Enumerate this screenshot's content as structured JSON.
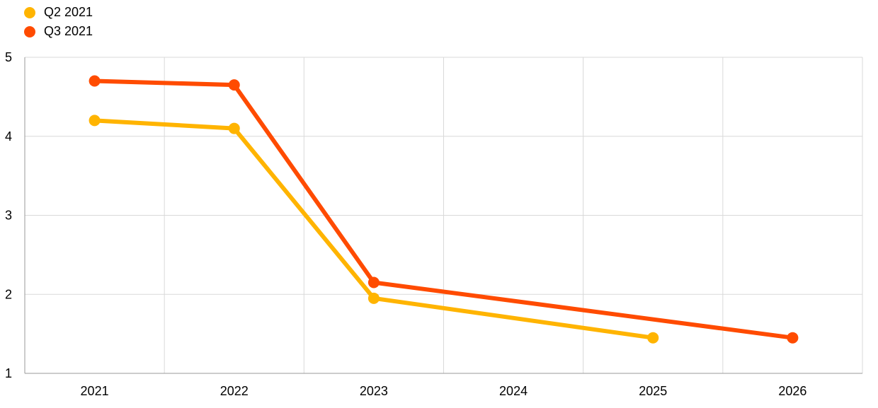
{
  "chart_data": {
    "type": "line",
    "title": "",
    "xlabel": "",
    "ylabel": "",
    "categories": [
      "2021",
      "2022",
      "2023",
      "2024",
      "2025",
      "2026"
    ],
    "ylim": [
      1,
      5
    ],
    "yticks": [
      1,
      2,
      3,
      4,
      5
    ],
    "grid": true,
    "legend_position": "top-left",
    "series": [
      {
        "name": "Q2 2021",
        "color": "#FFB400",
        "values": [
          4.2,
          4.1,
          1.95,
          null,
          1.45,
          null
        ]
      },
      {
        "name": "Q3 2021",
        "color": "#FF4B00",
        "values": [
          4.7,
          4.65,
          2.15,
          null,
          null,
          1.45
        ]
      }
    ]
  }
}
